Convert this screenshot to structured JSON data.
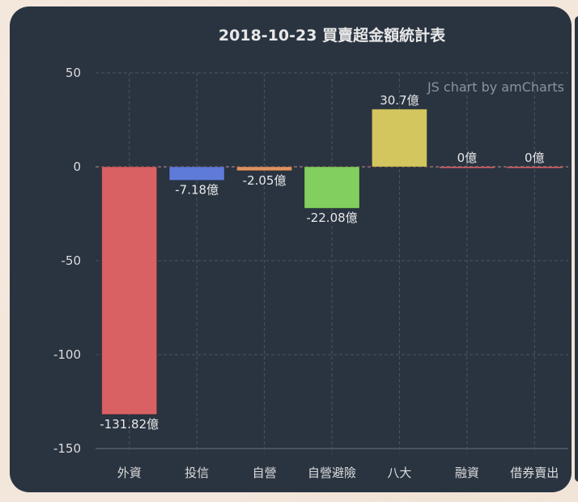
{
  "chart_data": {
    "type": "bar",
    "title": "2018-10-23 買賣超金額統計表",
    "credit": "JS chart by amCharts",
    "categories": [
      "外資",
      "投信",
      "自營",
      "自營避險",
      "八大",
      "融資",
      "借券賣出"
    ],
    "values": [
      -131.82,
      -7.18,
      -2.05,
      -22.08,
      30.7,
      0,
      0
    ],
    "data_labels": [
      "-131.82億",
      "-7.18億",
      "-2.05億",
      "-22.08億",
      "30.7億",
      "0億",
      "0億"
    ],
    "colors": [
      "#d96164",
      "#5f7bd9",
      "#e0935f",
      "#82cf5f",
      "#d3c65f",
      "#d96164",
      "#d96164"
    ],
    "ylim": [
      -150,
      50
    ],
    "yticks": [
      "50",
      "0",
      "-50",
      "-100",
      "-150"
    ],
    "ytick_values": [
      50,
      0,
      -50,
      -100,
      -150
    ],
    "grid": true,
    "xlabel": "",
    "ylabel": ""
  }
}
